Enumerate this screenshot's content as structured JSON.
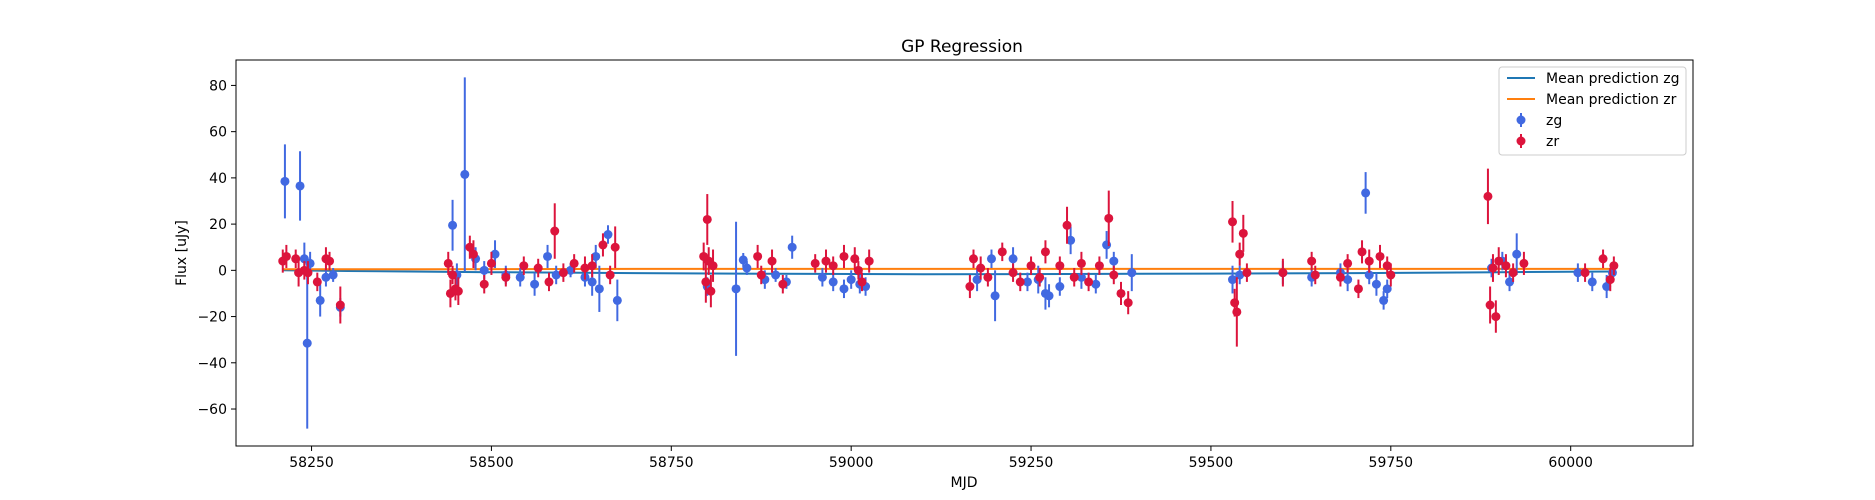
{
  "chart_data": {
    "type": "scatter",
    "title": "GP Regression",
    "xlabel": "MJD",
    "ylabel": "Flux [uJy]",
    "xlim": [
      58145,
      60170
    ],
    "ylim": [
      -76,
      91
    ],
    "xticks": [
      58250,
      58500,
      58750,
      59000,
      59250,
      59500,
      59750,
      60000
    ],
    "yticks": [
      -60,
      -40,
      -20,
      0,
      20,
      40,
      60,
      80
    ],
    "legend_position": "top-right",
    "colors": {
      "zg_points": "#4169e1",
      "zr_points": "#dc143c",
      "mean_zg": "#1f77b4",
      "mean_zr": "#ff7f0e"
    },
    "lines": [
      {
        "name": "Mean prediction zg",
        "x": [
          58210,
          58300,
          58500,
          58700,
          58900,
          59100,
          59300,
          59500,
          59700,
          59900,
          60060
        ],
        "y": [
          0,
          -0.3,
          -0.8,
          -1.2,
          -1.5,
          -1.7,
          -1.6,
          -1.4,
          -1.2,
          -0.8,
          -0.5
        ]
      },
      {
        "name": "Mean prediction zr",
        "x": [
          58210,
          58400,
          58700,
          59000,
          59300,
          59600,
          59900,
          60060
        ],
        "y": [
          0.5,
          0.5,
          0.6,
          0.6,
          0.6,
          0.6,
          0.6,
          0.6
        ]
      }
    ],
    "series": [
      {
        "name": "zg",
        "points": [
          [
            58213,
            38.5,
            16
          ],
          [
            58234,
            36.5,
            15
          ],
          [
            58240,
            5,
            7
          ],
          [
            58244,
            -31.5,
            37
          ],
          [
            58248,
            3,
            5
          ],
          [
            58262,
            -13,
            7
          ],
          [
            58270,
            -3,
            4
          ],
          [
            58280,
            -2,
            3
          ],
          [
            58290,
            -16,
            4
          ],
          [
            58446,
            19.5,
            11
          ],
          [
            58452,
            -2,
            5
          ],
          [
            58463,
            41.5,
            42
          ],
          [
            58478,
            5,
            5
          ],
          [
            58490,
            0,
            4
          ],
          [
            58505,
            7,
            6
          ],
          [
            58520,
            -2,
            4
          ],
          [
            58540,
            -3,
            4
          ],
          [
            58560,
            -6,
            5
          ],
          [
            58578,
            6,
            5
          ],
          [
            58590,
            -2,
            4
          ],
          [
            58610,
            0,
            3
          ],
          [
            58630,
            -3,
            4
          ],
          [
            58640,
            -5,
            6
          ],
          [
            58645,
            6,
            5
          ],
          [
            58650,
            -8,
            10
          ],
          [
            58662,
            15.5,
            4
          ],
          [
            58675,
            -13,
            9
          ],
          [
            58800,
            -7,
            4
          ],
          [
            58840,
            -8,
            29
          ],
          [
            58850,
            4.5,
            3
          ],
          [
            58855,
            1,
            3
          ],
          [
            58880,
            -4,
            4
          ],
          [
            58895,
            -2,
            3
          ],
          [
            58910,
            -5,
            3
          ],
          [
            58918,
            10,
            5
          ],
          [
            58960,
            -3,
            4
          ],
          [
            58975,
            -5,
            4
          ],
          [
            58990,
            -8,
            4
          ],
          [
            59000,
            -4,
            4
          ],
          [
            59012,
            -6,
            4
          ],
          [
            59020,
            -7,
            4
          ],
          [
            59175,
            -4,
            5
          ],
          [
            59195,
            5,
            4
          ],
          [
            59200,
            -11,
            11
          ],
          [
            59225,
            5,
            5
          ],
          [
            59245,
            -5,
            4
          ],
          [
            59260,
            -4,
            6
          ],
          [
            59270,
            -10,
            7
          ],
          [
            59275,
            -11,
            5
          ],
          [
            59290,
            -7,
            4
          ],
          [
            59305,
            13,
            6
          ],
          [
            59320,
            -3,
            5
          ],
          [
            59340,
            -6,
            4
          ],
          [
            59355,
            11,
            6
          ],
          [
            59365,
            4,
            4
          ],
          [
            59390,
            -1,
            8
          ],
          [
            59530,
            -4,
            6
          ],
          [
            59540,
            -2,
            4
          ],
          [
            59600,
            -1,
            5
          ],
          [
            59640,
            -3,
            4
          ],
          [
            59680,
            -1,
            4
          ],
          [
            59690,
            -4,
            5
          ],
          [
            59715,
            33.5,
            9
          ],
          [
            59720,
            -2,
            4
          ],
          [
            59730,
            -6,
            5
          ],
          [
            59740,
            -13,
            4
          ],
          [
            59745,
            -8,
            4
          ],
          [
            59890,
            1,
            4
          ],
          [
            59905,
            4,
            4
          ],
          [
            59915,
            -5,
            4
          ],
          [
            59925,
            7,
            9
          ],
          [
            60010,
            -1,
            4
          ],
          [
            60030,
            -5,
            4
          ],
          [
            60050,
            -7,
            5
          ],
          [
            60058,
            -1,
            4
          ]
        ]
      },
      {
        "name": "zr",
        "points": [
          [
            58210,
            4,
            5
          ],
          [
            58215,
            6,
            5
          ],
          [
            58228,
            5,
            4
          ],
          [
            58232,
            -1,
            6
          ],
          [
            58240,
            0,
            4
          ],
          [
            58245,
            -1,
            5
          ],
          [
            58258,
            -5,
            4
          ],
          [
            58270,
            5,
            5
          ],
          [
            58275,
            4,
            4
          ],
          [
            58290,
            -15,
            8
          ],
          [
            58440,
            3,
            5
          ],
          [
            58443,
            -10,
            6
          ],
          [
            58446,
            -2,
            4
          ],
          [
            58450,
            -8,
            5
          ],
          [
            58454,
            -9,
            6
          ],
          [
            58470,
            10,
            5
          ],
          [
            58475,
            7,
            6
          ],
          [
            58490,
            -6,
            4
          ],
          [
            58500,
            3,
            5
          ],
          [
            58520,
            -3,
            4
          ],
          [
            58545,
            2,
            4
          ],
          [
            58565,
            1,
            4
          ],
          [
            58580,
            -5,
            4
          ],
          [
            58588,
            17,
            12
          ],
          [
            58600,
            -1,
            4
          ],
          [
            58615,
            3,
            4
          ],
          [
            58630,
            1,
            5
          ],
          [
            58640,
            2,
            5
          ],
          [
            58655,
            11,
            5
          ],
          [
            58665,
            -2,
            4
          ],
          [
            58672,
            10,
            9
          ],
          [
            58795,
            6,
            6
          ],
          [
            58798,
            -5,
            9
          ],
          [
            58800,
            22,
            11
          ],
          [
            58802,
            4,
            6
          ],
          [
            58805,
            -9,
            7
          ],
          [
            58808,
            2,
            7
          ],
          [
            58870,
            6,
            5
          ],
          [
            58875,
            -2,
            4
          ],
          [
            58890,
            4,
            5
          ],
          [
            58905,
            -6,
            4
          ],
          [
            58950,
            3,
            4
          ],
          [
            58965,
            4,
            5
          ],
          [
            58975,
            2,
            4
          ],
          [
            58990,
            6,
            5
          ],
          [
            59005,
            5,
            5
          ],
          [
            59010,
            0,
            4
          ],
          [
            59015,
            -5,
            4
          ],
          [
            59025,
            4,
            5
          ],
          [
            59165,
            -7,
            5
          ],
          [
            59170,
            5,
            4
          ],
          [
            59180,
            1,
            5
          ],
          [
            59190,
            -3,
            4
          ],
          [
            59210,
            8,
            4
          ],
          [
            59225,
            -1,
            4
          ],
          [
            59235,
            -5,
            4
          ],
          [
            59250,
            2,
            4
          ],
          [
            59262,
            -3,
            4
          ],
          [
            59270,
            8,
            5
          ],
          [
            59290,
            2,
            4
          ],
          [
            59300,
            19.5,
            8
          ],
          [
            59310,
            -3,
            4
          ],
          [
            59320,
            3,
            5
          ],
          [
            59330,
            -5,
            4
          ],
          [
            59345,
            2,
            4
          ],
          [
            59358,
            22.5,
            12
          ],
          [
            59365,
            -2,
            4
          ],
          [
            59375,
            -10,
            5
          ],
          [
            59385,
            -14,
            5
          ],
          [
            59530,
            21,
            9
          ],
          [
            59533,
            -14,
            6
          ],
          [
            59536,
            -18,
            15
          ],
          [
            59540,
            7,
            5
          ],
          [
            59545,
            16,
            8
          ],
          [
            59550,
            -1,
            4
          ],
          [
            59600,
            -1,
            6
          ],
          [
            59640,
            4,
            4
          ],
          [
            59645,
            -2,
            4
          ],
          [
            59680,
            -3,
            4
          ],
          [
            59690,
            3,
            4
          ],
          [
            59705,
            -8,
            4
          ],
          [
            59710,
            8,
            5
          ],
          [
            59720,
            4,
            5
          ],
          [
            59735,
            6,
            5
          ],
          [
            59745,
            2,
            4
          ],
          [
            59750,
            -2,
            5
          ],
          [
            59885,
            32,
            12
          ],
          [
            59888,
            -15,
            8
          ],
          [
            59892,
            1,
            6
          ],
          [
            59896,
            -20,
            7
          ],
          [
            59900,
            4,
            6
          ],
          [
            59910,
            2,
            5
          ],
          [
            59920,
            -1,
            4
          ],
          [
            59935,
            3,
            5
          ],
          [
            60020,
            -1,
            4
          ],
          [
            60045,
            5,
            4
          ],
          [
            60055,
            -4,
            5
          ],
          [
            60060,
            2,
            4
          ]
        ]
      }
    ]
  }
}
